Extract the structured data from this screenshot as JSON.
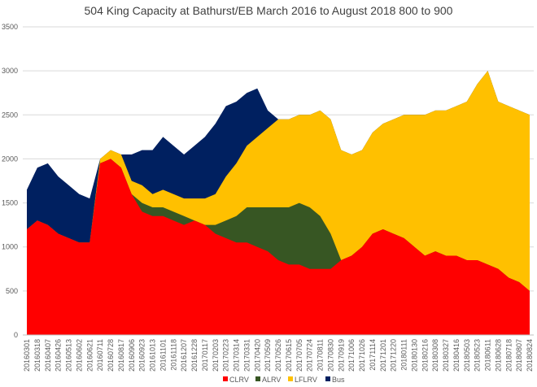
{
  "chart_data": {
    "type": "area",
    "stacked": true,
    "title": "504 King Capacity at Bathurst/EB March 2016 to August 2018  800 to 900",
    "xlabel": "",
    "ylabel": "",
    "ylim": [
      0,
      3500
    ],
    "yticks": [
      "0",
      "500",
      "1000",
      "1500",
      "2000",
      "2500",
      "3000",
      "3500"
    ],
    "grid": true,
    "legend_position": "bottom",
    "categories": [
      "20160301",
      "20160318",
      "20160407",
      "20160426",
      "20160513",
      "20160602",
      "20160621",
      "20160711",
      "20160728",
      "20160817",
      "20160906",
      "20160923",
      "20161013",
      "20161101",
      "20161118",
      "20161207",
      "20161228",
      "20170117",
      "20170203",
      "20170223",
      "20170314",
      "20170331",
      "20170420",
      "20170509",
      "20170526",
      "20170615",
      "20170705",
      "20170724",
      "20170811",
      "20170830",
      "20170919",
      "20171006",
      "20171026",
      "20171114",
      "20171201",
      "20171220",
      "20180111",
      "20180130",
      "20180216",
      "20180308",
      "20180327",
      "20180416",
      "20180503",
      "20180523",
      "20180611",
      "20180628",
      "20180718",
      "20180807",
      "20180824"
    ],
    "series": [
      {
        "name": "CLRV",
        "color": "#ff0000",
        "values": [
          1200,
          1300,
          1250,
          1150,
          1100,
          1050,
          1050,
          1950,
          2000,
          1900,
          1600,
          1400,
          1350,
          1350,
          1300,
          1250,
          1300,
          1250,
          1150,
          1100,
          1050,
          1050,
          1000,
          950,
          850,
          800,
          800,
          750,
          750,
          750,
          850,
          900,
          1000,
          1150,
          1200,
          1150,
          1100,
          1000,
          900,
          950,
          900,
          900,
          850,
          850,
          800,
          750,
          650,
          600,
          500
        ]
      },
      {
        "name": "ALRV",
        "color": "#375623",
        "values": [
          0,
          0,
          0,
          0,
          0,
          0,
          0,
          0,
          0,
          0,
          0,
          100,
          100,
          100,
          100,
          100,
          0,
          0,
          100,
          200,
          300,
          400,
          450,
          500,
          600,
          650,
          700,
          700,
          600,
          400,
          0,
          0,
          0,
          0,
          0,
          0,
          0,
          0,
          0,
          0,
          0,
          0,
          0,
          0,
          0,
          0,
          0,
          0,
          0
        ]
      },
      {
        "name": "LFLRV",
        "color": "#ffc000",
        "values": [
          0,
          0,
          0,
          0,
          0,
          0,
          0,
          50,
          100,
          150,
          150,
          200,
          150,
          200,
          200,
          200,
          250,
          300,
          350,
          500,
          600,
          700,
          800,
          900,
          1000,
          1000,
          1000,
          1050,
          1200,
          1300,
          1250,
          1150,
          1100,
          1150,
          1200,
          1300,
          1400,
          1500,
          1600,
          1600,
          1650,
          1700,
          1800,
          2000,
          2200,
          1900,
          1950,
          1950,
          2000
        ]
      },
      {
        "name": "Bus",
        "color": "#002060",
        "values": [
          450,
          600,
          700,
          650,
          600,
          550,
          500,
          0,
          0,
          0,
          300,
          400,
          500,
          600,
          550,
          500,
          600,
          700,
          800,
          800,
          700,
          600,
          550,
          200,
          0,
          0,
          0,
          0,
          0,
          0,
          0,
          0,
          0,
          0,
          0,
          0,
          0,
          0,
          0,
          0,
          0,
          0,
          0,
          0,
          0,
          0,
          0,
          0,
          0
        ]
      }
    ]
  }
}
